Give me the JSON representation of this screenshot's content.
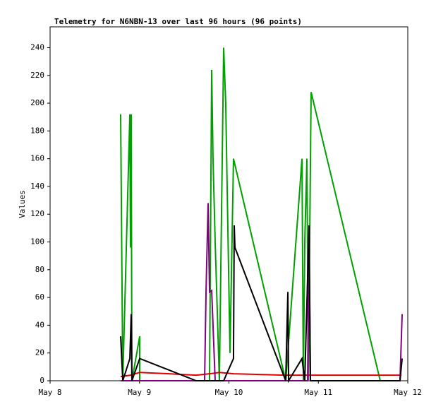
{
  "chart_data": {
    "type": "line",
    "title": "Telemetry for N6NBN-13 over last 96 hours (96 points)",
    "y_label": "Values",
    "xlim": [
      8,
      12
    ],
    "xticks": [
      {
        "value": 8,
        "label": "May 8"
      },
      {
        "value": 9,
        "label": "May 9"
      },
      {
        "value": 10,
        "label": "May 10"
      },
      {
        "value": 11,
        "label": "May 11"
      },
      {
        "value": 12,
        "label": "May 12"
      }
    ],
    "ylim": [
      0,
      255
    ],
    "yticks": [
      0,
      20,
      40,
      60,
      80,
      100,
      120,
      140,
      160,
      180,
      200,
      220,
      240
    ],
    "series": [
      {
        "color": "#00a000",
        "x": [
          8.789,
          8.813,
          8.892,
          8.899,
          8.907,
          8.915,
          9.002,
          9.002,
          9.783,
          9.807,
          9.822,
          9.846,
          9.893,
          9.941,
          9.964,
          10.012,
          10.051,
          10.635,
          10.817,
          10.832,
          10.848,
          10.872,
          10.888,
          10.919,
          11.692
        ],
        "values": [
          192,
          0,
          192,
          96,
          192,
          0,
          32,
          0,
          0,
          224,
          160,
          100,
          0,
          240,
          200,
          20,
          160,
          0,
          160,
          0,
          100,
          160,
          0,
          208,
          0
        ]
      },
      {
        "color": "#e00000",
        "x": [
          8.789,
          8.899,
          9.002,
          9.333,
          9.633,
          9.783,
          9.893,
          10.051,
          10.635,
          10.919,
          11.929
        ],
        "values": [
          3,
          4,
          6,
          5,
          4,
          5,
          6,
          5,
          4,
          4,
          4
        ]
      },
      {
        "color": "#800080",
        "x": [
          8.789,
          9.728,
          9.744,
          9.767,
          9.783,
          9.807,
          9.846,
          10.88,
          10.896,
          10.911,
          11.913,
          11.937
        ],
        "values": [
          0,
          0,
          64,
          128,
          64,
          65,
          0,
          0,
          112,
          0,
          0,
          48
        ]
      },
      {
        "color": "#000000",
        "x": [
          8.789,
          8.813,
          8.892,
          8.907,
          8.915,
          9.002,
          9.633,
          9.941,
          10.051,
          10.059,
          10.067,
          10.635,
          10.659,
          10.667,
          10.817,
          10.848,
          10.896,
          10.911,
          11.913,
          11.937
        ],
        "values": [
          32,
          0,
          16,
          48,
          0,
          16,
          0,
          0,
          16,
          112,
          96,
          0,
          64,
          0,
          16,
          0,
          112,
          0,
          0,
          16
        ]
      }
    ]
  }
}
